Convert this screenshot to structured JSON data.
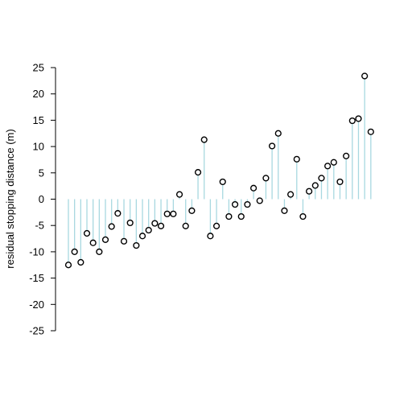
{
  "chart_data": {
    "type": "scatter",
    "style": "residual-lollipop",
    "title": "",
    "xlabel": "",
    "ylabel": "residual stopping distance (m)",
    "ylim": [
      -25,
      25
    ],
    "yticks": [
      25,
      20,
      15,
      10,
      5,
      0,
      -5,
      -10,
      -15,
      -20,
      -25
    ],
    "xaxis_shown": false,
    "grid": false,
    "stem_color": "#a8d8e0",
    "point_color": "#000000",
    "x": [
      1,
      2,
      3,
      4,
      5,
      6,
      7,
      8,
      9,
      10,
      11,
      12,
      13,
      14,
      15,
      16,
      17,
      18,
      19,
      20,
      21,
      22,
      23,
      24,
      25,
      26,
      27,
      28,
      29,
      30,
      31,
      32,
      33,
      34,
      35,
      36,
      37,
      38,
      39,
      40,
      41,
      42,
      43,
      44,
      45,
      46,
      47,
      48,
      49,
      50
    ],
    "values": [
      -12.5,
      -10,
      -12,
      -6.5,
      -8.3,
      -10,
      -7.7,
      -5.2,
      -2.7,
      -8,
      -4.5,
      -8.8,
      -7,
      -5.9,
      -4.6,
      -5.1,
      -2.8,
      -2.8,
      0.9,
      -5.1,
      -2.2,
      5.1,
      11.3,
      -7,
      -5.1,
      3.3,
      -3.3,
      -1,
      -3.3,
      -1,
      2.1,
      -0.3,
      4,
      10.1,
      12.5,
      -2.2,
      0.9,
      7.6,
      -3.3,
      1.5,
      2.6,
      4,
      6.3,
      7,
      3.3,
      8.2,
      14.9,
      15.3,
      23.4,
      12.8
    ]
  }
}
